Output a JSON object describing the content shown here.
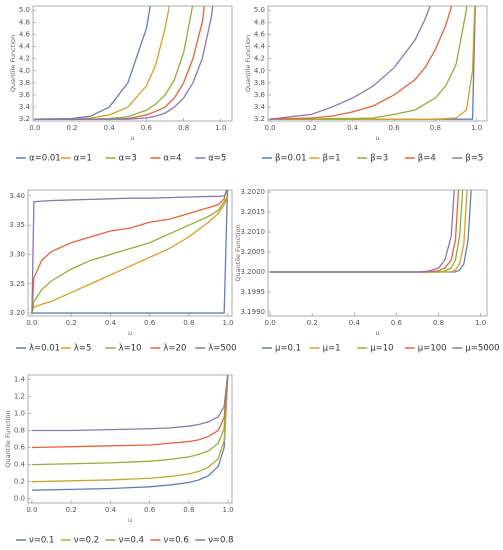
{
  "chart_data": [
    {
      "type": "line",
      "xlabel": "u",
      "ylabel": "Quantile Function",
      "x": [
        0,
        0.2,
        0.3,
        0.4,
        0.5,
        0.6,
        0.65,
        0.7,
        0.75,
        0.8,
        0.85,
        0.9,
        0.95,
        0.98
      ],
      "xlim": [
        -0.01,
        1.06
      ],
      "ylim": [
        3.17,
        5.07
      ],
      "xticks": [
        {
          "value": 0,
          "label": "0.0"
        },
        0.2,
        0.4,
        0.6,
        0.8,
        {
          "value": 1,
          "label": "1.0"
        }
      ],
      "yticks": [
        3.2,
        3.4,
        3.6,
        3.8,
        {
          "value": 4,
          "label": "4.0"
        },
        4.2,
        4.4,
        4.6,
        4.8,
        {
          "value": 5,
          "label": "5.0"
        }
      ],
      "series": [
        {
          "name": "α=0.01",
          "color": "#5e81b5",
          "values": [
            3.2,
            3.21,
            3.25,
            3.4,
            3.8,
            4.7,
            5.6,
            null,
            null,
            null,
            null,
            null,
            null,
            null
          ]
        },
        {
          "name": "α=1",
          "color": "#e19c24",
          "values": [
            3.2,
            3.2,
            3.22,
            3.27,
            3.4,
            3.75,
            4.1,
            4.7,
            5.5,
            null,
            null,
            null,
            null,
            null
          ]
        },
        {
          "name": "α=3",
          "color": "#8fb032",
          "values": [
            3.2,
            3.2,
            3.2,
            3.21,
            3.24,
            3.35,
            3.45,
            3.6,
            3.85,
            4.3,
            5.1,
            6,
            null,
            null
          ]
        },
        {
          "name": "α=4",
          "color": "#eb6235",
          "values": [
            3.2,
            3.2,
            3.2,
            3.2,
            3.21,
            3.27,
            3.33,
            3.4,
            3.55,
            3.8,
            4.2,
            4.8,
            6,
            null
          ]
        },
        {
          "name": "α=5",
          "color": "#8778b3",
          "values": [
            3.2,
            3.2,
            3.2,
            3.2,
            3.2,
            3.22,
            3.25,
            3.3,
            3.4,
            3.55,
            3.8,
            4.2,
            4.9,
            5.8
          ]
        }
      ]
    },
    {
      "type": "line",
      "xlabel": "u",
      "ylabel": "Quantile Function",
      "x": [
        0,
        0.2,
        0.3,
        0.4,
        0.5,
        0.6,
        0.7,
        0.75,
        0.8,
        0.85,
        0.9,
        0.95,
        0.98,
        1.0
      ],
      "xlim": [
        -0.01,
        1.05
      ],
      "ylim": [
        3.17,
        5.07
      ],
      "xticks": [
        {
          "value": 0,
          "label": "0.0"
        },
        0.2,
        0.4,
        0.6,
        0.8,
        {
          "value": 1,
          "label": "1.0"
        }
      ],
      "yticks": [
        3.2,
        3.4,
        3.6,
        3.8,
        {
          "value": 4,
          "label": "4.0"
        },
        4.2,
        4.4,
        4.6,
        4.8,
        {
          "value": 5,
          "label": "5.0"
        }
      ],
      "series": [
        {
          "name": "β=0.01",
          "color": "#5e81b5",
          "values": [
            3.2,
            3.2,
            3.2,
            3.2,
            3.2,
            3.2,
            3.2,
            3.2,
            3.2,
            3.2,
            3.2,
            3.2,
            3.2,
            6
          ]
        },
        {
          "name": "β=1",
          "color": "#e19c24",
          "values": [
            3.2,
            3.2,
            3.2,
            3.2,
            3.2,
            3.2,
            3.2,
            3.2,
            3.2,
            3.21,
            3.22,
            3.35,
            4.0,
            6
          ]
        },
        {
          "name": "β=3",
          "color": "#8fb032",
          "values": [
            3.2,
            3.2,
            3.21,
            3.21,
            3.22,
            3.28,
            3.35,
            3.45,
            3.55,
            3.75,
            4.1,
            5.0,
            6,
            null
          ]
        },
        {
          "name": "β=4",
          "color": "#eb6235",
          "values": [
            3.2,
            3.22,
            3.25,
            3.32,
            3.42,
            3.6,
            3.85,
            4.05,
            4.35,
            4.75,
            5.3,
            null,
            null,
            null
          ]
        },
        {
          "name": "β=5",
          "color": "#8778b3",
          "values": [
            3.2,
            3.28,
            3.4,
            3.55,
            3.75,
            4.05,
            4.5,
            4.85,
            5.3,
            null,
            null,
            null,
            null,
            null
          ]
        }
      ]
    },
    {
      "type": "line",
      "xlabel": "u",
      "x": [
        0,
        0.01,
        0.05,
        0.1,
        0.2,
        0.3,
        0.4,
        0.5,
        0.6,
        0.7,
        0.8,
        0.9,
        0.95,
        0.98,
        1.0
      ],
      "xlim": [
        -0.02,
        1.02
      ],
      "ylim": [
        3.195,
        3.41
      ],
      "xticks": [
        {
          "value": 0,
          "label": "0.0"
        },
        0.2,
        0.4,
        0.6,
        0.8,
        {
          "value": 1,
          "label": "1.0"
        }
      ],
      "yticks": [
        {
          "value": 3.2,
          "label": "3.20"
        },
        3.25,
        {
          "value": 3.3,
          "label": "3.30"
        },
        3.35,
        {
          "value": 3.4,
          "label": "3.40"
        }
      ],
      "series": [
        {
          "name": "λ=0.01",
          "color": "#5e81b5",
          "values": [
            3.2,
            3.2,
            3.2,
            3.2,
            3.2,
            3.2,
            3.2,
            3.2,
            3.2,
            3.2,
            3.2,
            3.2,
            3.2,
            3.2,
            3.45
          ]
        },
        {
          "name": "λ=5",
          "color": "#e19c24",
          "values": [
            3.2,
            3.21,
            3.215,
            3.22,
            3.235,
            3.25,
            3.265,
            3.28,
            3.295,
            3.31,
            3.33,
            3.355,
            3.37,
            3.385,
            3.4
          ]
        },
        {
          "name": "λ=10",
          "color": "#8fb032",
          "values": [
            3.2,
            3.22,
            3.24,
            3.255,
            3.275,
            3.29,
            3.3,
            3.31,
            3.32,
            3.335,
            3.35,
            3.365,
            3.375,
            3.39,
            3.4
          ]
        },
        {
          "name": "λ=20",
          "color": "#eb6235",
          "values": [
            3.2,
            3.26,
            3.29,
            3.305,
            3.32,
            3.33,
            3.34,
            3.345,
            3.355,
            3.36,
            3.37,
            3.38,
            3.385,
            3.395,
            3.42
          ]
        },
        {
          "name": "λ=500",
          "color": "#8778b3",
          "values": [
            3.2,
            3.39,
            3.391,
            3.392,
            3.393,
            3.394,
            3.395,
            3.396,
            3.396,
            3.397,
            3.398,
            3.399,
            3.399,
            3.4,
            3.41
          ]
        }
      ]
    },
    {
      "type": "line",
      "xlabel": "u",
      "ylabel": "Quantile Function",
      "x": [
        0,
        0.5,
        0.7,
        0.75,
        0.8,
        0.83,
        0.86,
        0.88,
        0.9,
        0.92,
        0.94,
        0.96
      ],
      "xlim": [
        -0.01,
        1.03
      ],
      "ylim": [
        3.1989,
        3.20205
      ],
      "xticks": [
        {
          "value": 0,
          "label": "0.0"
        },
        0.2,
        0.4,
        0.6,
        0.8,
        {
          "value": 1,
          "label": "1.0"
        }
      ],
      "yticks": [
        {
          "value": 3.199,
          "label": "3.1990"
        },
        3.1995,
        {
          "value": 3.2,
          "label": "3.2000"
        },
        3.2005,
        {
          "value": 3.201,
          "label": "3.2010"
        },
        3.2015,
        {
          "value": 3.202,
          "label": "3.2020"
        }
      ],
      "series": [
        {
          "name": "μ=0.1",
          "color": "#5e81b5",
          "values": [
            3.2,
            3.2,
            3.2,
            3.2,
            3.2,
            3.2,
            3.2,
            3.2,
            3.20005,
            3.2002,
            3.2008,
            3.2025
          ]
        },
        {
          "name": "μ=1",
          "color": "#e19c24",
          "values": [
            3.2,
            3.2,
            3.2,
            3.2,
            3.2,
            3.2,
            3.2,
            3.20005,
            3.2002,
            3.2007,
            3.2025,
            null
          ]
        },
        {
          "name": "μ=10",
          "color": "#8fb032",
          "values": [
            3.2,
            3.2,
            3.2,
            3.2,
            3.2,
            3.20002,
            3.2001,
            3.2003,
            3.2009,
            3.2025,
            null,
            null
          ]
        },
        {
          "name": "μ=100",
          "color": "#eb6235",
          "values": [
            3.2,
            3.2,
            3.2,
            3.2,
            3.20003,
            3.2001,
            3.2003,
            3.2008,
            3.2025,
            null,
            null,
            null
          ]
        },
        {
          "name": "μ=5000",
          "color": "#8778b3",
          "values": [
            3.2,
            3.2,
            3.2,
            3.20002,
            3.2001,
            3.2003,
            3.2009,
            3.2025,
            null,
            null,
            null,
            null
          ]
        }
      ]
    },
    {
      "type": "line",
      "xlabel": "u",
      "ylabel": "Quantile Function",
      "x": [
        0,
        0.2,
        0.4,
        0.6,
        0.7,
        0.8,
        0.85,
        0.9,
        0.95,
        0.98,
        1.0
      ],
      "xlim": [
        -0.02,
        1.02
      ],
      "ylim": [
        -0.05,
        1.45
      ],
      "xticks": [
        {
          "value": 0,
          "label": "0.0"
        },
        0.2,
        0.4,
        0.6,
        0.8,
        {
          "value": 1,
          "label": "1.0"
        }
      ],
      "yticks": [
        {
          "value": 0,
          "label": "0.0"
        },
        0.2,
        0.4,
        0.6,
        0.8,
        {
          "value": 1,
          "label": "1.0"
        },
        1.2,
        1.4
      ],
      "series": [
        {
          "name": "ν=0.1",
          "color": "#5e81b5",
          "values": [
            0.1,
            0.11,
            0.12,
            0.14,
            0.16,
            0.19,
            0.22,
            0.27,
            0.38,
            0.6,
            1.5
          ]
        },
        {
          "name": "ν=0.2",
          "color": "#c2aa2e",
          "values": [
            0.2,
            0.21,
            0.22,
            0.24,
            0.26,
            0.29,
            0.32,
            0.37,
            0.47,
            0.68,
            1.5
          ]
        },
        {
          "name": "ν=0.4",
          "color": "#8fb032",
          "values": [
            0.4,
            0.41,
            0.42,
            0.44,
            0.46,
            0.49,
            0.52,
            0.56,
            0.65,
            0.82,
            1.5
          ]
        },
        {
          "name": "ν=0.6",
          "color": "#eb6235",
          "values": [
            0.6,
            0.61,
            0.62,
            0.63,
            0.65,
            0.67,
            0.69,
            0.73,
            0.8,
            0.95,
            1.5
          ]
        },
        {
          "name": "ν=0.8",
          "color": "#8778b3",
          "values": [
            0.8,
            0.8,
            0.81,
            0.82,
            0.83,
            0.85,
            0.87,
            0.9,
            0.96,
            1.08,
            1.5
          ]
        }
      ]
    }
  ]
}
